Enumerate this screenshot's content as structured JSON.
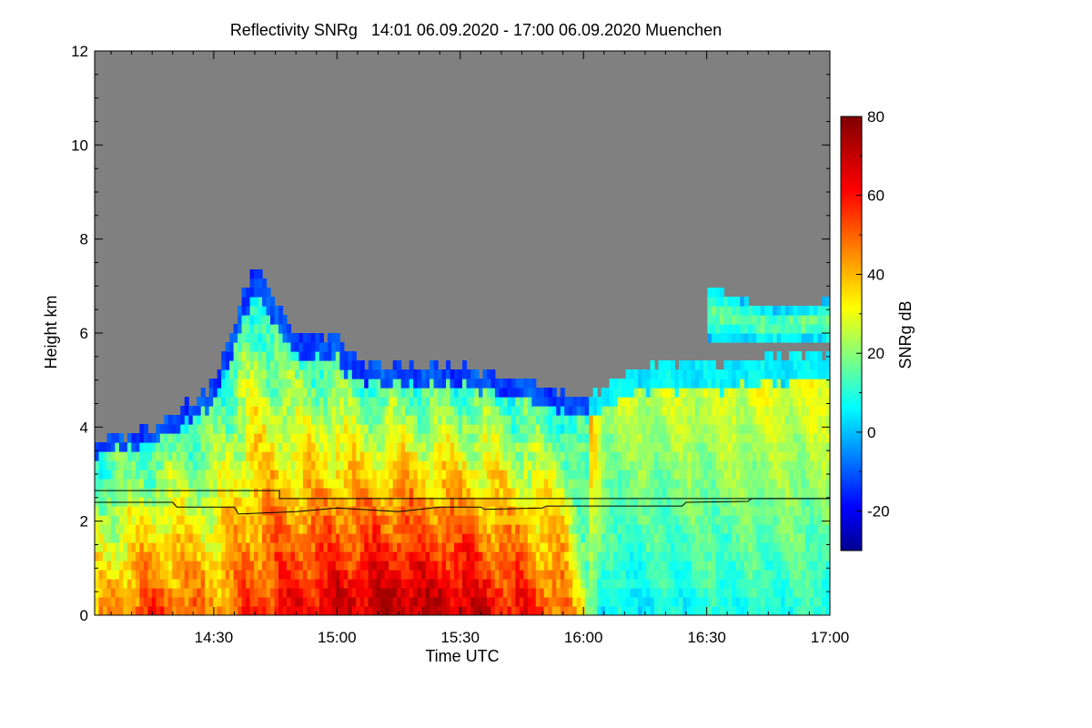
{
  "chart_data": {
    "type": "heatmap",
    "title": "Reflectivity SNRg   14:01 06.09.2020 - 17:00 06.09.2020 Muenchen",
    "xlabel": "Time UTC",
    "ylabel": "Height km",
    "colorbar_label": "SNRg dB",
    "xlim": [
      "14:01",
      "17:00"
    ],
    "ylim": [
      0,
      12
    ],
    "x_ticks": [
      "14:30",
      "15:00",
      "15:30",
      "16:00",
      "16:30",
      "17:00"
    ],
    "y_ticks": [
      "0",
      "2",
      "4",
      "6",
      "8",
      "10",
      "12"
    ],
    "colorbar_range": [
      -30,
      80
    ],
    "colorbar_ticks": [
      "-20",
      "0",
      "20",
      "40",
      "60",
      "80"
    ],
    "colormap": [
      "#00008f",
      "#0000ff",
      "#00ffff",
      "#ffff00",
      "#ff0000",
      "#800000"
    ],
    "missing_color": "#808080",
    "echo_top_km": [
      {
        "t": "14:01",
        "h": 3.7
      },
      {
        "t": "14:15",
        "h": 4.0
      },
      {
        "t": "14:30",
        "h": 4.9
      },
      {
        "t": "14:40",
        "h": 7.5
      },
      {
        "t": "14:50",
        "h": 6.0
      },
      {
        "t": "15:00",
        "h": 5.9
      },
      {
        "t": "15:05",
        "h": 5.3
      },
      {
        "t": "15:30",
        "h": 5.3
      },
      {
        "t": "15:45",
        "h": 5.0
      },
      {
        "t": "16:00",
        "h": 4.6
      },
      {
        "t": "16:15",
        "h": 5.3
      },
      {
        "t": "16:30",
        "h": 5.3
      },
      {
        "t": "16:45",
        "h": 5.5
      },
      {
        "t": "17:00",
        "h": 5.6
      }
    ],
    "upper_layer_km": [
      {
        "t": "16:30",
        "bottom": 5.9,
        "top": 7.0
      },
      {
        "t": "16:45",
        "bottom": 5.8,
        "top": 6.5
      },
      {
        "t": "17:00",
        "bottom": 5.8,
        "top": 6.7
      }
    ],
    "line_upper_km": [
      {
        "t": "14:01",
        "h": 2.65
      },
      {
        "t": "14:46",
        "h": 2.65
      },
      {
        "t": "14:46",
        "h": 2.48
      },
      {
        "t": "17:00",
        "h": 2.48
      }
    ],
    "line_lower_km": [
      {
        "t": "14:01",
        "h": 2.4
      },
      {
        "t": "14:20",
        "h": 2.4
      },
      {
        "t": "14:21",
        "h": 2.3
      },
      {
        "t": "14:35",
        "h": 2.3
      },
      {
        "t": "14:36",
        "h": 2.15
      },
      {
        "t": "14:50",
        "h": 2.2
      },
      {
        "t": "15:00",
        "h": 2.28
      },
      {
        "t": "15:15",
        "h": 2.2
      },
      {
        "t": "15:25",
        "h": 2.3
      },
      {
        "t": "15:35",
        "h": 2.3
      },
      {
        "t": "15:36",
        "h": 2.25
      },
      {
        "t": "15:50",
        "h": 2.28
      },
      {
        "t": "15:51",
        "h": 2.32
      },
      {
        "t": "16:24",
        "h": 2.32
      },
      {
        "t": "16:25",
        "h": 2.4
      },
      {
        "t": "16:40",
        "h": 2.42
      },
      {
        "t": "16:41",
        "h": 2.48
      },
      {
        "t": "17:00",
        "h": 2.48
      }
    ],
    "intensity_profile": [
      {
        "t": "14:01",
        "surface_db": 40
      },
      {
        "t": "14:15",
        "surface_db": 55
      },
      {
        "t": "14:30",
        "surface_db": 45
      },
      {
        "t": "14:45",
        "surface_db": 60
      },
      {
        "t": "15:00",
        "surface_db": 68
      },
      {
        "t": "15:15",
        "surface_db": 75
      },
      {
        "t": "15:30",
        "surface_db": 70
      },
      {
        "t": "15:45",
        "surface_db": 60
      },
      {
        "t": "15:55",
        "surface_db": 50
      },
      {
        "t": "16:05",
        "surface_db": 5
      },
      {
        "t": "16:30",
        "surface_db": 8
      },
      {
        "t": "17:00",
        "surface_db": 10
      }
    ]
  }
}
